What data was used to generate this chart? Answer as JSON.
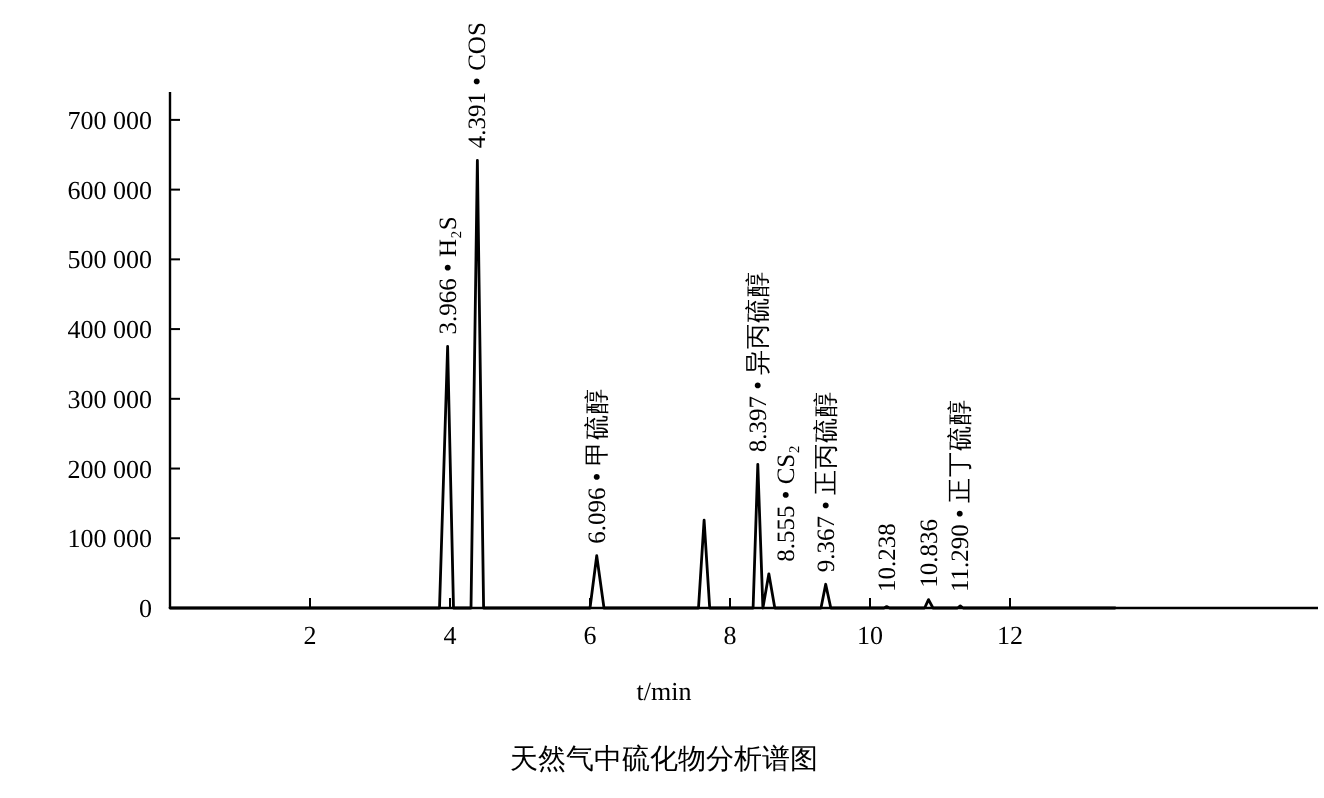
{
  "chart_data": {
    "type": "line",
    "title": "天然气中硫化物分析谱图",
    "xlabel": "t/min",
    "x": [
      0,
      3.85,
      3.966,
      4.05,
      4.3,
      4.391,
      4.48,
      6.0,
      6.096,
      6.2,
      7.55,
      7.63,
      7.71,
      8.33,
      8.397,
      8.47,
      8.555,
      8.64,
      9.3,
      9.367,
      9.44,
      10.2,
      10.238,
      10.28,
      10.78,
      10.836,
      10.9,
      11.25,
      11.29,
      11.33,
      13.5
    ],
    "series": [
      {
        "color": "#000000",
        "values": [
          0,
          0,
          375000,
          0,
          0,
          642000,
          0,
          0,
          75000,
          0,
          0,
          126000,
          0,
          0,
          206000,
          0,
          49000,
          0,
          0,
          34000,
          0,
          0,
          2000,
          0,
          0,
          12000,
          0,
          0,
          3000,
          0,
          0
        ]
      }
    ],
    "xlim": [
      0,
      16.4
    ],
    "ylim": [
      0,
      740000
    ],
    "xticks": [
      2,
      4,
      6,
      8,
      10,
      12
    ],
    "yticks": [
      0,
      {
        "value": 100000,
        "label": "100 000"
      },
      {
        "value": 200000,
        "label": "200 000"
      },
      {
        "value": 300000,
        "label": "300 000"
      },
      {
        "value": 400000,
        "label": "400 000"
      },
      {
        "value": 500000,
        "label": "500 000"
      },
      {
        "value": 600000,
        "label": "600 000"
      },
      {
        "value": 700000,
        "label": "700 000"
      }
    ],
    "grid": false,
    "marker": "none",
    "line_style": "solid",
    "annotations": [
      {
        "text": "3.966 • H₂S",
        "x": 3.966,
        "y": 375000
      },
      {
        "text": "4.391 • COS",
        "x": 4.391,
        "y": 642000
      },
      {
        "text": "6.096 • 甲硫醇",
        "x": 6.096,
        "y": 75000
      },
      {
        "text": "8.397 • 异丙硫醇",
        "x": 8.397,
        "y": 206000
      },
      {
        "text": "8.555 • CS₂",
        "x": 8.555,
        "y": 49000
      },
      {
        "text": "9.367 • 正丙硫醇",
        "x": 9.367,
        "y": 34000
      },
      {
        "text": "10.238",
        "x": 10.238,
        "y": 2000
      },
      {
        "text": "10.836",
        "x": 10.836,
        "y": 12000
      },
      {
        "text": "11.290 • 正丁硫醇",
        "x": 11.29,
        "y": 3000
      }
    ]
  }
}
